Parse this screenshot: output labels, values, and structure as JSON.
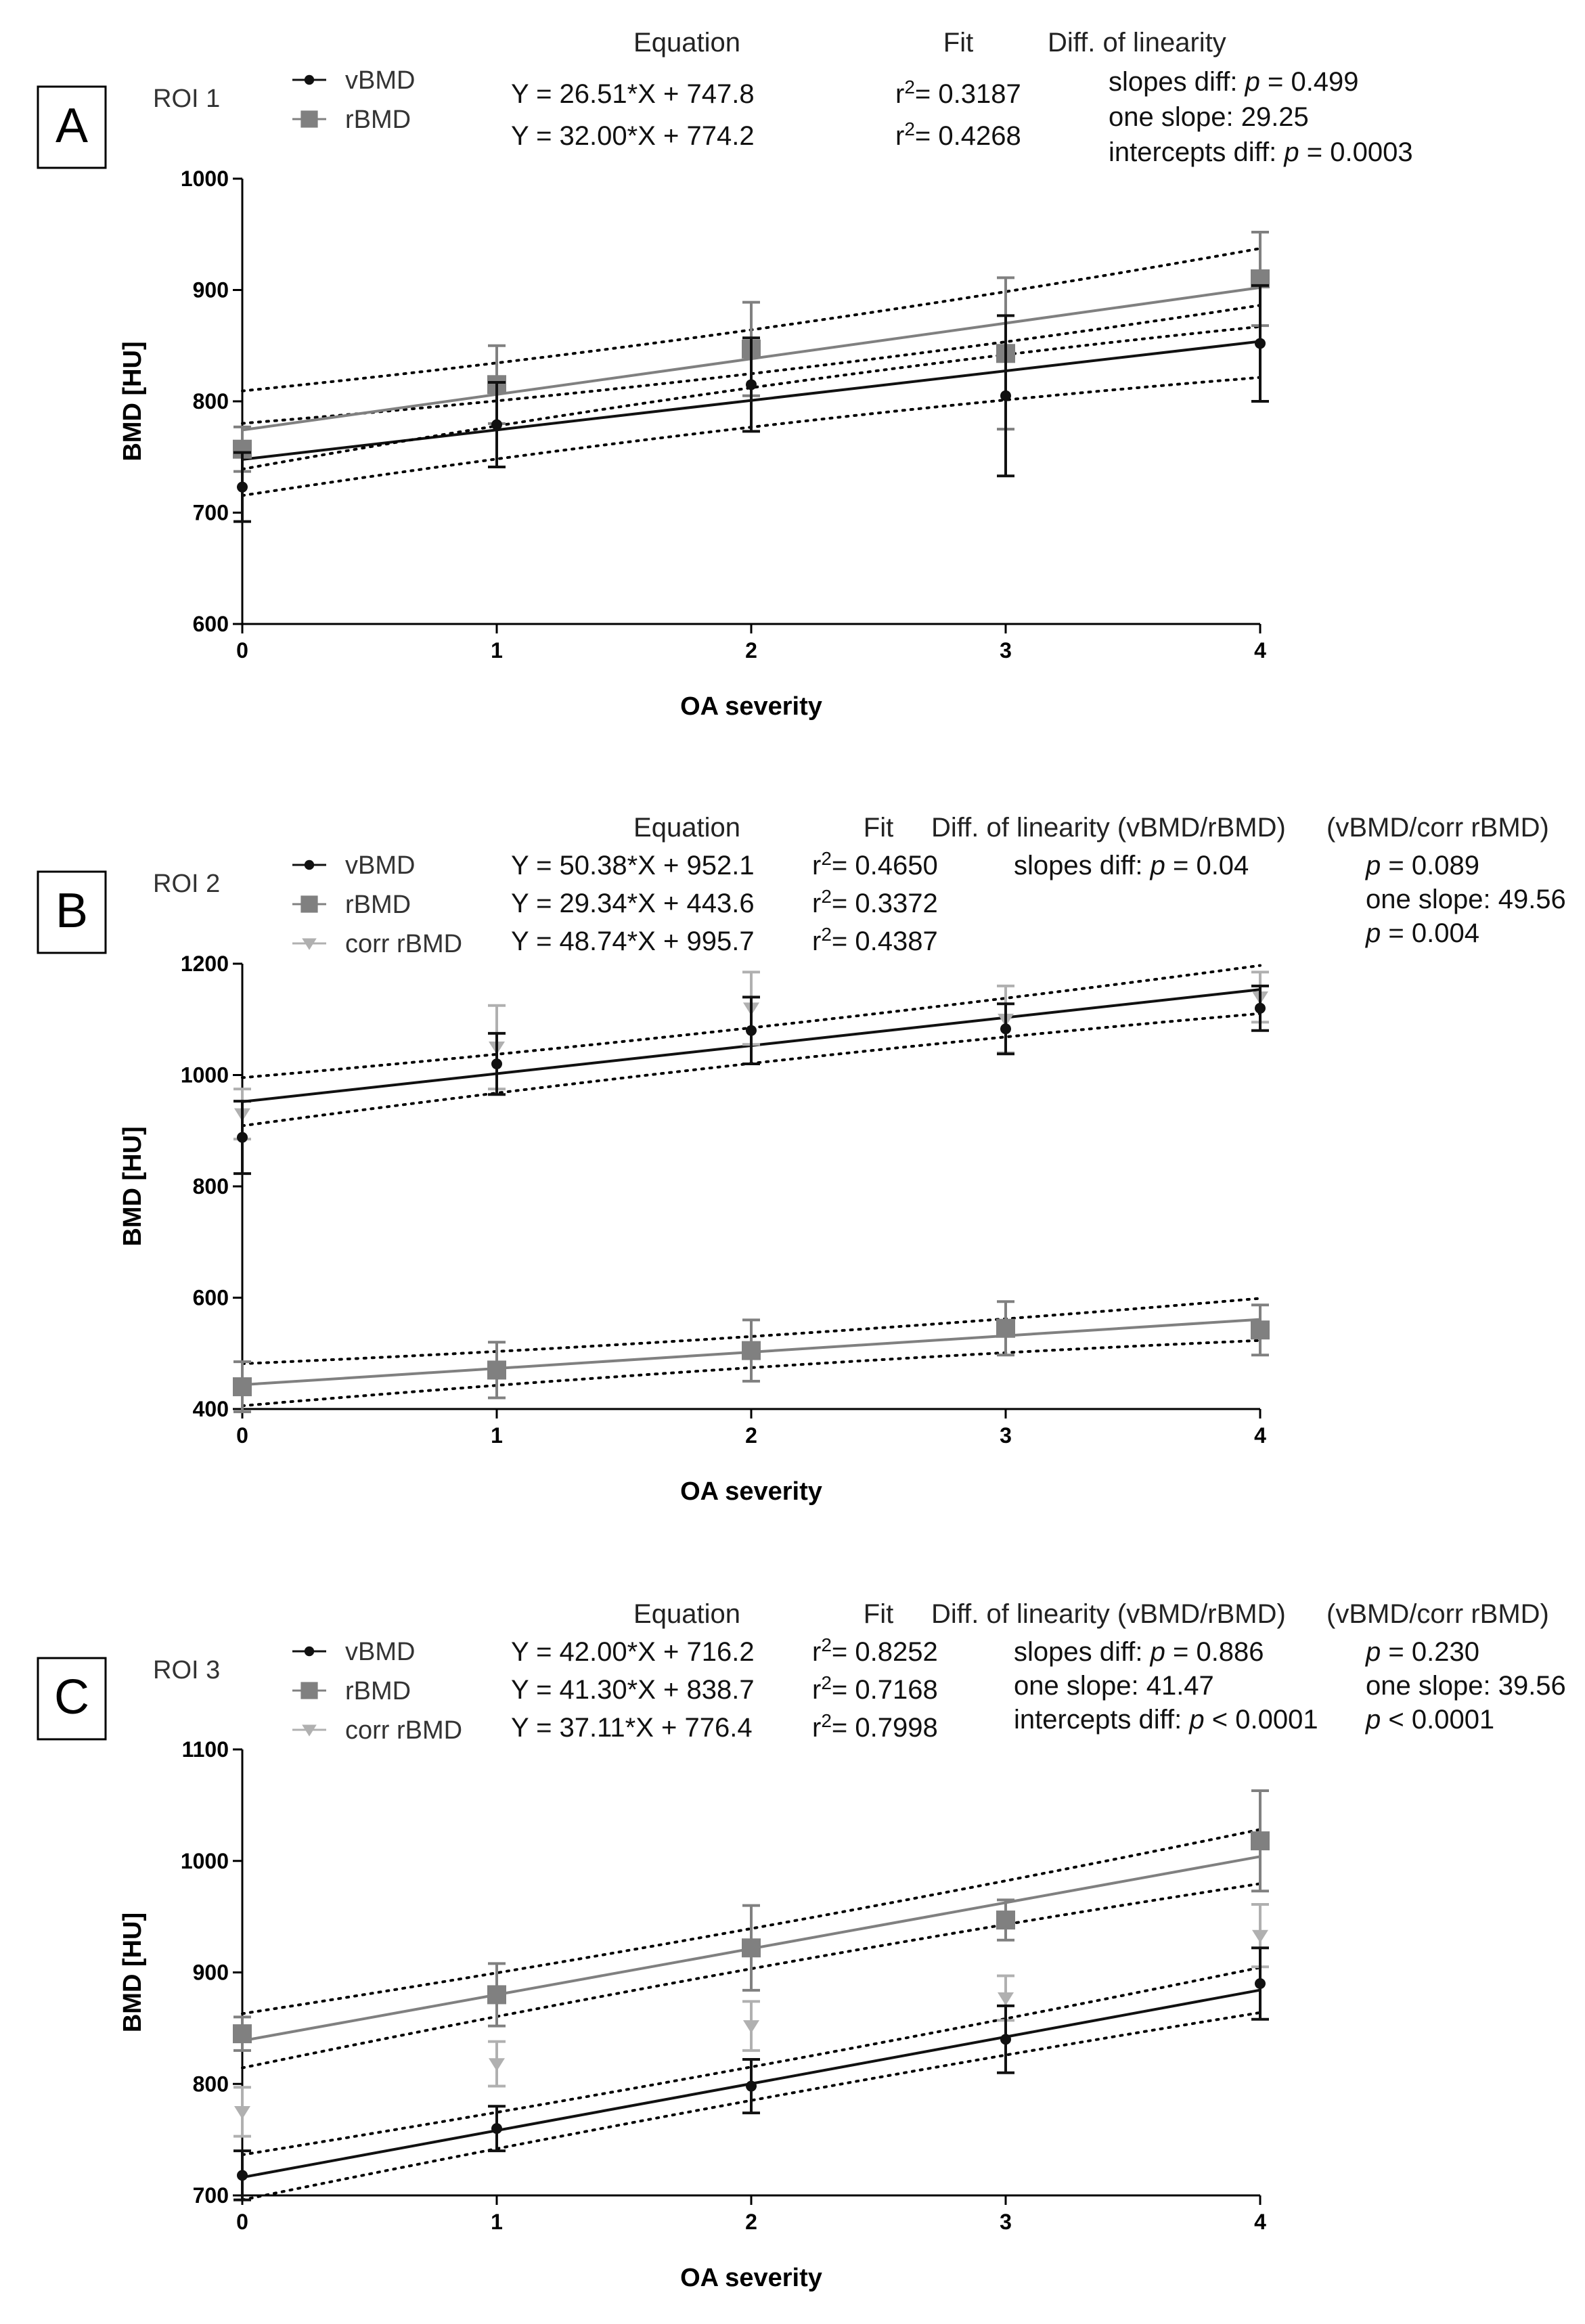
{
  "chart_data": [
    {
      "type": "scatter",
      "panel": "A",
      "roi": "ROI 1",
      "xlabel": "OA severity",
      "ylabel": "BMD [HU]",
      "xlim": [
        0,
        4
      ],
      "ylim": [
        600,
        1000
      ],
      "yticks": [
        600,
        700,
        800,
        900,
        1000
      ],
      "xticks": [
        0,
        1,
        2,
        3,
        4
      ],
      "headers": {
        "equation": "Equation",
        "fit": "Fit",
        "diff": "Diff. of linearity"
      },
      "series": [
        {
          "name": "vBMD",
          "color": "#111111",
          "marker": "circle",
          "x": [
            0,
            1,
            2,
            3,
            4
          ],
          "values": [
            723,
            779,
            815,
            805,
            852
          ],
          "err": [
            31,
            38,
            42,
            72,
            52
          ],
          "fit": {
            "slope": 26.51,
            "intercept": 747.8,
            "ci": 24
          },
          "equation": "Y = 26.51*X + 747.8",
          "r2": "0.3187"
        },
        {
          "name": "rBMD",
          "color": "#808080",
          "marker": "square",
          "x": [
            0,
            1,
            2,
            3,
            4
          ],
          "values": [
            757,
            815,
            847,
            843,
            910
          ],
          "err": [
            20,
            35,
            42,
            68,
            42
          ],
          "fit": {
            "slope": 32.0,
            "intercept": 774.2,
            "ci": 26
          },
          "equation": "Y = 32.00*X + 774.2",
          "r2": "0.4268"
        }
      ],
      "diff_lines": [
        {
          "label": "slopes diff: ",
          "p": "p",
          "value": " = 0.499"
        },
        {
          "label": "one slope: 29.25",
          "p": "",
          "value": ""
        },
        {
          "label": "intercepts diff: ",
          "p": "p",
          "value": " = 0.0003"
        }
      ]
    },
    {
      "type": "scatter",
      "panel": "B",
      "roi": "ROI 2",
      "xlabel": "OA severity",
      "ylabel": "BMD [HU]",
      "xlim": [
        0,
        4
      ],
      "ylim": [
        400,
        1200
      ],
      "yticks": [
        400,
        600,
        800,
        1000,
        1200
      ],
      "xticks": [
        0,
        1,
        2,
        3,
        4
      ],
      "headers": {
        "equation": "Equation",
        "fit": "Fit",
        "diff": "Diff. of linearity (vBMD/rBMD)",
        "diff2": "(vBMD/corr rBMD)"
      },
      "series": [
        {
          "name": "vBMD",
          "color": "#111111",
          "marker": "circle",
          "x": [
            0,
            1,
            2,
            3,
            4
          ],
          "values": [
            888,
            1020,
            1080,
            1083,
            1120
          ],
          "err": [
            65,
            55,
            60,
            45,
            40
          ],
          "fit": {
            "slope": 50.38,
            "intercept": 952.1,
            "ci": 32
          },
          "equation": "Y = 50.38*X + 952.1",
          "r2": "0.4650"
        },
        {
          "name": "rBMD",
          "color": "#808080",
          "marker": "square",
          "x": [
            0,
            1,
            2,
            3,
            4
          ],
          "values": [
            440,
            470,
            505,
            545,
            542
          ],
          "err": [
            45,
            50,
            55,
            48,
            45
          ],
          "fit": {
            "slope": 29.34,
            "intercept": 443.6,
            "ci": 28
          },
          "equation": "Y = 29.34*X + 443.6",
          "r2": "0.3372"
        },
        {
          "name": "corr rBMD",
          "color": "#b0b0b0",
          "marker": "triangle",
          "x": [
            0,
            1,
            2,
            3,
            4
          ],
          "values": [
            930,
            1050,
            1120,
            1100,
            1140
          ],
          "err": [
            45,
            75,
            65,
            60,
            45
          ],
          "fit": null,
          "equation": "Y = 48.74*X + 995.7",
          "r2": "0.4387"
        }
      ],
      "diff_lines": [
        {
          "label": "slopes diff: ",
          "p": "p",
          "value": " = 0.04"
        }
      ],
      "diff2_lines": [
        {
          "label": "",
          "p": "p",
          "value": " = 0.089"
        },
        {
          "label": "one slope: 49.56",
          "p": "",
          "value": ""
        },
        {
          "label": "",
          "p": "p",
          "value": " = 0.004"
        }
      ]
    },
    {
      "type": "scatter",
      "panel": "C",
      "roi": "ROI 3",
      "xlabel": "OA severity",
      "ylabel": "BMD [HU]",
      "xlim": [
        0,
        4
      ],
      "ylim": [
        700,
        1100
      ],
      "yticks": [
        700,
        800,
        900,
        1000,
        1100
      ],
      "xticks": [
        0,
        1,
        2,
        3,
        4
      ],
      "headers": {
        "equation": "Equation",
        "fit": "Fit",
        "diff": "Diff. of linearity (vBMD/rBMD)",
        "diff2": "(vBMD/corr rBMD)"
      },
      "series": [
        {
          "name": "vBMD",
          "color": "#111111",
          "marker": "circle",
          "x": [
            0,
            1,
            2,
            3,
            4
          ],
          "values": [
            718,
            760,
            798,
            840,
            890
          ],
          "err": [
            22,
            20,
            24,
            30,
            32
          ],
          "fit": {
            "slope": 42.0,
            "intercept": 716.2,
            "ci": 15
          },
          "equation": "Y = 42.00*X + 716.2",
          "r2": "0.8252"
        },
        {
          "name": "rBMD",
          "color": "#808080",
          "marker": "square",
          "x": [
            0,
            1,
            2,
            3,
            4
          ],
          "values": [
            845,
            880,
            922,
            947,
            1018
          ],
          "err": [
            15,
            28,
            38,
            18,
            45
          ],
          "fit": {
            "slope": 41.3,
            "intercept": 838.7,
            "ci": 18
          },
          "equation": "Y = 41.30*X + 838.7",
          "r2": "0.7168"
        },
        {
          "name": "corr rBMD",
          "color": "#b0b0b0",
          "marker": "triangle",
          "x": [
            0,
            1,
            2,
            3,
            4
          ],
          "values": [
            775,
            818,
            852,
            877,
            933
          ],
          "err": [
            22,
            20,
            22,
            20,
            28
          ],
          "fit": null,
          "equation": "Y = 37.11*X + 776.4",
          "r2": "0.7998"
        }
      ],
      "diff_lines": [
        {
          "label": "slopes diff: ",
          "p": "p",
          "value": " = 0.886"
        },
        {
          "label": "one slope: 41.47",
          "p": "",
          "value": ""
        },
        {
          "label": "intercepts diff: ",
          "p": "p",
          "value": " < 0.0001"
        }
      ],
      "diff2_lines": [
        {
          "label": "",
          "p": "p",
          "value": " = 0.230"
        },
        {
          "label": "one slope: 39.56",
          "p": "",
          "value": ""
        },
        {
          "label": "",
          "p": "p",
          "value": " < 0.0001"
        }
      ]
    }
  ]
}
